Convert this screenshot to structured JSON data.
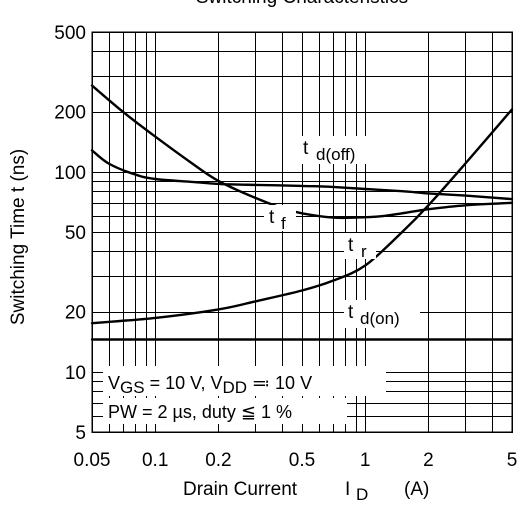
{
  "chart_data": {
    "type": "line",
    "title": "Switching Characteristics",
    "xlabel": "Drain Current",
    "xlabel_symbol": "I",
    "xlabel_sub": "D",
    "xlabel_unit": "(A)",
    "ylabel": "Switching Time   t  (ns)",
    "x_scale": "log",
    "y_scale": "log",
    "xlim": [
      0.05,
      5
    ],
    "ylim": [
      5,
      500
    ],
    "grid": true,
    "x_ticks": [
      0.05,
      0.1,
      0.2,
      0.5,
      1,
      2,
      5
    ],
    "x_tick_labels": [
      "0.05",
      "0.1",
      "0.2",
      "0.5",
      "1",
      "2",
      "5"
    ],
    "y_ticks": [
      5,
      10,
      20,
      50,
      100,
      200,
      500
    ],
    "y_tick_labels": [
      "5",
      "10",
      "20",
      "50",
      "100",
      "200",
      "500"
    ],
    "x_minor": [
      0.06,
      0.07,
      0.08,
      0.09,
      0.3,
      0.4,
      0.6,
      0.7,
      0.8,
      0.9,
      3,
      4
    ],
    "y_minor": [
      6,
      7,
      8,
      9,
      30,
      40,
      60,
      70,
      80,
      90,
      300,
      400
    ],
    "conditions": {
      "line1": {
        "v1": "V",
        "v1_sub": "GS",
        "v1_rest": " = 10 V, V",
        "v2_sub": "DD",
        "v2_rest": " ≕ 10 V"
      },
      "line2": {
        "pw": "PW = 2 µs, duty ",
        "le": "≦",
        "rest": " 1 %"
      }
    },
    "series": [
      {
        "name": "t d(off)",
        "label_main": "t",
        "label_sub": "d(off)",
        "x": [
          0.05,
          0.06,
          0.08,
          0.1,
          0.15,
          0.2,
          0.3,
          0.5,
          0.7,
          1,
          1.5,
          2,
          3,
          5
        ],
        "y": [
          128,
          110,
          97,
          92,
          89,
          87,
          86,
          85,
          84,
          82,
          80,
          78,
          76,
          73
        ]
      },
      {
        "name": "t f",
        "label_main": "t",
        "label_sub": "f",
        "x": [
          0.05,
          0.07,
          0.1,
          0.15,
          0.2,
          0.3,
          0.4,
          0.5,
          0.7,
          0.9,
          1.2,
          1.5,
          2,
          3,
          5
        ],
        "y": [
          270,
          200,
          150,
          110,
          90,
          74,
          66,
          62,
          59,
          59,
          60,
          62,
          65,
          68,
          70
        ]
      },
      {
        "name": "t r",
        "label_main": "t",
        "label_sub": "r",
        "x": [
          0.05,
          0.1,
          0.2,
          0.3,
          0.5,
          0.7,
          1,
          1.5,
          2,
          3,
          5
        ],
        "y": [
          17.5,
          18.6,
          20.5,
          22.5,
          25.5,
          28.5,
          34,
          50,
          68,
          110,
          205
        ]
      },
      {
        "name": "t d(on)",
        "label_main": "t",
        "label_sub": "d(on)",
        "x": [
          0.05,
          5
        ],
        "y": [
          14.5,
          14.5
        ]
      }
    ]
  }
}
